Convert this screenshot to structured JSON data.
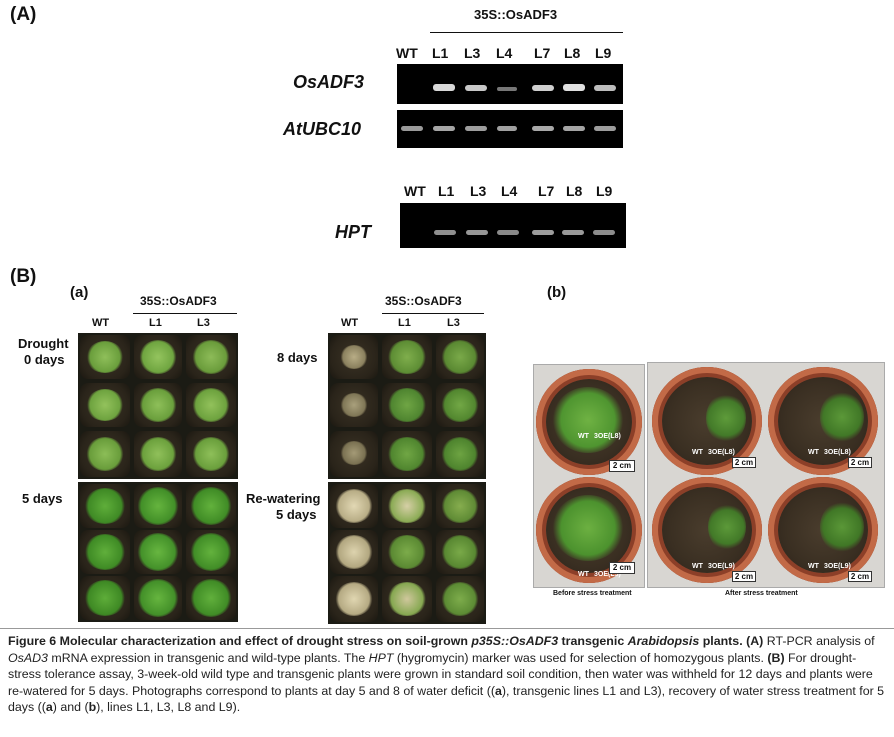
{
  "panelA": {
    "label": "(A)",
    "construct": "35S::OsADF3",
    "lanes": [
      "WT",
      "L1",
      "L3",
      "L4",
      "L7",
      "L8",
      "L9"
    ],
    "genes": [
      "OsADF3",
      "AtUBC10",
      "HPT"
    ]
  },
  "panelB": {
    "label": "(B)",
    "sub_a": "(a)",
    "sub_b": "(b)",
    "construct": "35S::OsADF3",
    "cols": [
      "WT",
      "L1",
      "L3"
    ],
    "conditions": {
      "drought0": "Drought",
      "drought0_days": "0 days",
      "d5": "5 days",
      "d8": "8 days",
      "rewater": "Re-watering",
      "rewater_days": "5 days"
    },
    "photo_labels": {
      "before": "Before stress treatment",
      "after": "After stress treatment",
      "wt": "WT",
      "oe_l8": "3OE(L8)",
      "oe_l9": "3OE(L9)",
      "scale": "2 cm"
    }
  },
  "caption": {
    "prefix": "Figure 6 Molecular characterization and effect of drought stress on soil-grown ",
    "gene_italic": "p35S::OsADF3",
    "mid": " transgenic ",
    "species": "Arabidopsis",
    "suffix": " plants.",
    "a_label": "(A)",
    "t1": " RT-PCR analysis of ",
    "t1_gene": "OsAD3",
    "t2": " mRNA expression in transgenic and wild-type plants. The ",
    "t2_gene": "HPT",
    "t3": " (hygromycin) marker was used for selection of homozygous plants. ",
    "b_label": "(B)",
    "t4": " For drought-stress tolerance assay, 3-week-old wild type and transgenic plants were grown in standard soil condition, then water was withheld for 12 days and plants were re-watered for 5 days. Photographs correspond to plants at day 5 and 8 of water deficit ((",
    "a_sub": "a",
    "t5": "), transgenic lines L1 and L3), recovery of water stress treatment for 5 days ((",
    "a_sub2": "a",
    "t6": ") and (",
    "b_sub": "b",
    "t7": "), lines L1, L3, L8 and L9)."
  }
}
